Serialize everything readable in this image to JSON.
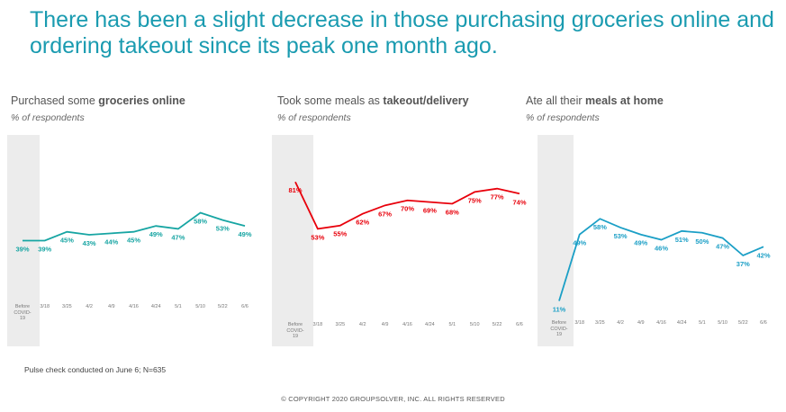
{
  "headline": "There has been a slight decrease in those purchasing groceries online and ordering takeout since its peak one month ago.",
  "footnote": "Pulse check conducted on June 6; N=635",
  "copyright": "© COPYRIGHT 2020 GROUPSOLVER, INC. ALL RIGHTS RESERVED",
  "chart_data": [
    {
      "type": "line",
      "title": [
        "Purchased some ",
        "groceries online"
      ],
      "title_bold": [
        false,
        true
      ],
      "subtitle": "% of respondents",
      "categories": [
        "Before COVID-19",
        "3/18",
        "3/25",
        "4/2",
        "4/9",
        "4/16",
        "4/24",
        "5/1",
        "5/10",
        "5/22",
        "6/6"
      ],
      "values": [
        39,
        39,
        45,
        43,
        44,
        45,
        49,
        47,
        58,
        53,
        49
      ],
      "value_labels": [
        "39%",
        "39%",
        "45%",
        "43%",
        "44%",
        "45%",
        "49%",
        "47%",
        "58%",
        "53%",
        "49%"
      ],
      "color": "#17a5a3",
      "ylim": [
        -33,
        111
      ]
    },
    {
      "type": "line",
      "title": [
        "Took some meals as ",
        "takeout/delivery"
      ],
      "title_bold": [
        false,
        true
      ],
      "subtitle": "% of respondents",
      "categories": [
        "Before COVID-19",
        "3/18",
        "3/25",
        "4/2",
        "4/9",
        "4/16",
        "4/24",
        "5/1",
        "5/10",
        "5/22",
        "6/6"
      ],
      "values": [
        81,
        53,
        55,
        62,
        67,
        70,
        69,
        68,
        75,
        77,
        74
      ],
      "value_labels": [
        "81%",
        "53%",
        "55%",
        "62%",
        "67%",
        "70%",
        "69%",
        "68%",
        "75%",
        "77%",
        "74%"
      ],
      "color": "#e8000b",
      "ylim": [
        -17,
        109
      ]
    },
    {
      "type": "line",
      "title": [
        "Ate all their ",
        "meals at home"
      ],
      "title_bold": [
        false,
        true
      ],
      "subtitle": "% of respondents",
      "categories": [
        "Before COVID-19",
        "3/18",
        "3/25",
        "4/2",
        "4/9",
        "4/16",
        "4/24",
        "5/1",
        "5/10",
        "5/22",
        "6/6"
      ],
      "values": [
        11,
        49,
        58,
        53,
        49,
        46,
        51,
        50,
        47,
        37,
        42
      ],
      "value_labels": [
        "11%",
        "49%",
        "58%",
        "53%",
        "49%",
        "46%",
        "51%",
        "50%",
        "47%",
        "37%",
        "42%"
      ],
      "color": "#1b9fc6",
      "ylim": [
        -15,
        106
      ]
    }
  ]
}
